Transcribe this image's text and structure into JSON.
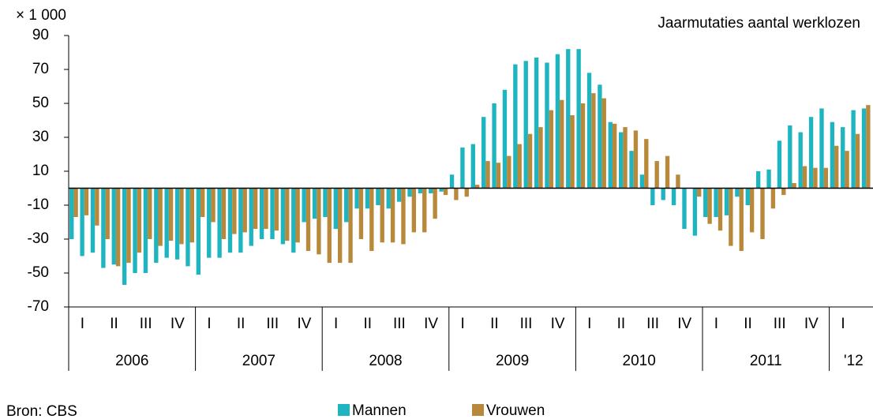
{
  "chart_data": {
    "type": "bar",
    "title": "Jaarmutaties aantal werklozen",
    "unit_label": "× 1 000",
    "source": "Bron: CBS",
    "ylim": [
      -70,
      90
    ],
    "yticks": [
      90,
      70,
      50,
      30,
      10,
      -10,
      -30,
      -50,
      -70
    ],
    "years": [
      "2006",
      "2007",
      "2008",
      "2009",
      "2010",
      "2011",
      "'12"
    ],
    "quarter_labels": [
      "I",
      "II",
      "III",
      "IV",
      "I",
      "II",
      "III",
      "IV",
      "I",
      "II",
      "III",
      "IV",
      "I",
      "II",
      "III",
      "IV",
      "I",
      "II",
      "III",
      "IV",
      "I",
      "II",
      "III",
      "IV",
      "I"
    ],
    "series": [
      {
        "name": "Mannen",
        "color": "#1fb5c0",
        "values": [
          -30,
          -40,
          -38,
          -47,
          -45,
          -57,
          -50,
          -50,
          -44,
          -41,
          -42,
          -46,
          -51,
          -41,
          -41,
          -38,
          -38,
          -34,
          -30,
          -30,
          -33,
          -38,
          -20,
          -18,
          -17,
          -24,
          -20,
          -12,
          -12,
          -10,
          -12,
          -8,
          -5,
          -3,
          -3,
          -2,
          8,
          24,
          26,
          42,
          50,
          58,
          73,
          75,
          77,
          74,
          79,
          82,
          82,
          68,
          61,
          39,
          33,
          22,
          8,
          -10,
          -7,
          -10,
          -24,
          -28,
          -17,
          -17,
          -16,
          -5,
          -10,
          10,
          11,
          28,
          37,
          33,
          42,
          47,
          39,
          36,
          46,
          47
        ]
      },
      {
        "name": "Vrouwen",
        "color": "#b8893a",
        "values": [
          -17,
          -16,
          -22,
          -30,
          -46,
          -44,
          -38,
          -30,
          -34,
          -31,
          -33,
          -32,
          -17,
          -20,
          -30,
          -27,
          -26,
          -24,
          -24,
          -25,
          -31,
          -32,
          -37,
          -39,
          -44,
          -44,
          -44,
          -30,
          -37,
          -32,
          -32,
          -33,
          -26,
          -26,
          -18,
          -4,
          -7,
          -5,
          2,
          16,
          15,
          19,
          26,
          32,
          36,
          46,
          52,
          43,
          50,
          56,
          53,
          38,
          36,
          34,
          29,
          16,
          19,
          8,
          0,
          -5,
          -21,
          -25,
          -34,
          -37,
          -26,
          -30,
          -12,
          -4,
          3,
          13,
          12,
          12,
          25,
          22,
          32,
          49
        ]
      }
    ]
  }
}
